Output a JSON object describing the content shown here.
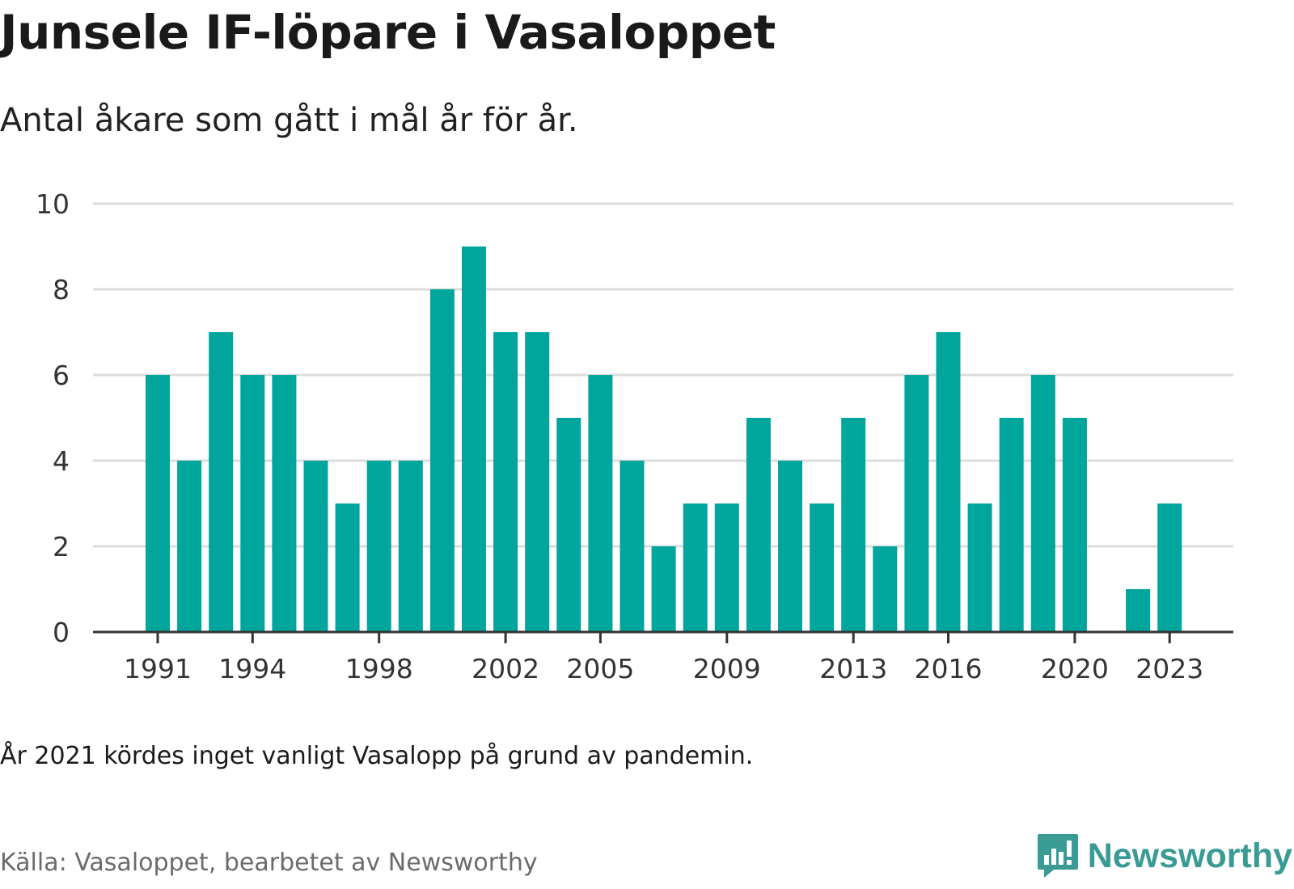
{
  "title": "Junsele IF-löpare i Vasaloppet",
  "subtitle": "Antal åkare som gått i mål år för år.",
  "note": "År 2021 kördes inget vanligt Vasalopp på grund av pandemin.",
  "source": "Källa: Vasaloppet, bearbetet av Newsworthy",
  "brand": {
    "name": "Newsworthy",
    "icon": "newsworthy-logo-icon",
    "color": "#3a9b94"
  },
  "colors": {
    "bar": "#00a59b",
    "grid": "#dcdcdc",
    "axis": "#333333"
  },
  "chart_data": {
    "type": "bar",
    "x": [
      1991,
      1992,
      1993,
      1994,
      1995,
      1996,
      1997,
      1998,
      1999,
      2000,
      2001,
      2002,
      2003,
      2004,
      2005,
      2006,
      2007,
      2008,
      2009,
      2010,
      2011,
      2012,
      2013,
      2014,
      2015,
      2016,
      2017,
      2018,
      2019,
      2020,
      2021,
      2022,
      2023
    ],
    "values": [
      6,
      4,
      7,
      6,
      6,
      4,
      3,
      4,
      4,
      8,
      9,
      7,
      7,
      5,
      6,
      4,
      2,
      3,
      3,
      5,
      4,
      3,
      5,
      2,
      6,
      7,
      3,
      5,
      6,
      5,
      null,
      1,
      3
    ],
    "x_tick_labels": [
      "1991",
      "1994",
      "1998",
      "2002",
      "2005",
      "2009",
      "2013",
      "2016",
      "2020",
      "2023"
    ],
    "y_ticks": [
      0,
      2,
      4,
      6,
      8,
      10
    ],
    "ylim": [
      0,
      10
    ],
    "grid": true,
    "xlabel": "",
    "ylabel": ""
  }
}
